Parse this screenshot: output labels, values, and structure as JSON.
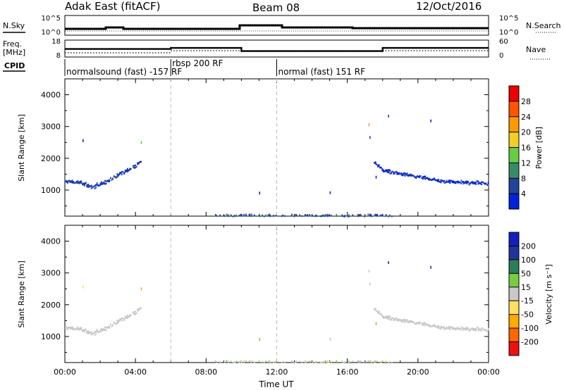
{
  "header": {
    "station": "Adak East (fitACF)",
    "beam": "Beam 08",
    "date": "12/Oct/2016"
  },
  "panels": {
    "nsky_label": "N.Sky",
    "nsearch_label": "N.Search",
    "freq_label": "Freq.",
    "freq_unit": "[MHz]",
    "nave_label": "Nave",
    "cpid_label": "CPID",
    "log_ticks_left": [
      "10^5",
      "10^0"
    ],
    "log_ticks_right": [
      "10^5",
      "10^0"
    ],
    "freq_ticks": [
      "18",
      "8"
    ],
    "nave_ticks": [
      "60",
      "0"
    ]
  },
  "cpid_segments": [
    {
      "label": "normalsound (fast) -157 RF",
      "start_hour": 0
    },
    {
      "label": "rbsp 200 RF",
      "start_hour": 6
    },
    {
      "label": "normal (fast) 151 RF",
      "start_hour": 12
    }
  ],
  "colors": {
    "power": [
      "#0022dd",
      "#224499",
      "#3a8a6a",
      "#66cc44",
      "#f0d020",
      "#ff9900",
      "#ff5500",
      "#ee0000"
    ],
    "velocity": [
      "#ee1111",
      "#ff6600",
      "#ffaa00",
      "#ffe060",
      "#c8c8c8",
      "#77cc44",
      "#2e7d5a",
      "#223399",
      "#1122bb"
    ]
  },
  "chart_data": [
    {
      "type": "line",
      "name": "frequency-nave",
      "x_unit": "hours UT",
      "frequency_steps": [
        {
          "x": [
            0,
            6
          ],
          "value": 12.7
        },
        {
          "x": [
            6,
            10
          ],
          "value": 13.5
        },
        {
          "x": [
            10,
            18
          ],
          "value": 11.0
        },
        {
          "x": [
            18,
            24
          ],
          "value": 13.5
        }
      ],
      "nave_steps": [
        {
          "x": [
            0,
            6
          ],
          "value": 10
        },
        {
          "x": [
            6,
            10
          ],
          "value": 20
        },
        {
          "x": [
            10,
            18
          ],
          "value": 20
        },
        {
          "x": [
            18,
            24
          ],
          "value": 20
        }
      ],
      "freq_ylim": [
        8,
        18
      ],
      "nave_ylim": [
        0,
        60
      ]
    },
    {
      "type": "scatter",
      "name": "power",
      "title": "",
      "xlabel": "",
      "ylabel": "Slant Range [km]",
      "xlim": [
        0,
        24
      ],
      "ylim": [
        180,
        4500
      ],
      "y_ticks": [
        "4000",
        "3000",
        "2000",
        "1000"
      ],
      "colorbar_label": "Power [dB]",
      "colorbar_ticks": [
        "28",
        "24",
        "20",
        "16",
        "12",
        "8",
        "4"
      ],
      "range_min": 3,
      "range_max": 30,
      "bands": [
        {
          "x": [
            0.0,
            0.5,
            1.0,
            1.5,
            2.0,
            2.5,
            3.0,
            3.5,
            4.0,
            4.3
          ],
          "y": [
            1290,
            1280,
            1230,
            1130,
            1200,
            1340,
            1500,
            1650,
            1810,
            1950
          ],
          "spread": 90,
          "density": 3,
          "v_mean": 7,
          "v_sd": 3
        },
        {
          "x": [
            17.5,
            18.0,
            18.5,
            19.0,
            19.5,
            20.0,
            20.5,
            21.0,
            21.5,
            22.0,
            22.5,
            23.0,
            23.5,
            24.0
          ],
          "y": [
            1900,
            1650,
            1580,
            1540,
            1500,
            1450,
            1400,
            1340,
            1290,
            1280,
            1270,
            1260,
            1250,
            1230
          ],
          "spread": 75,
          "density": 3,
          "v_mean": 6,
          "v_sd": 3
        }
      ],
      "scatter_noise": {
        "x": [
          8.5,
          18.5
        ],
        "y": [
          190,
          260
        ],
        "count": 120,
        "v_mean": 8,
        "v_sd": 4
      },
      "isolated_points": [
        {
          "x": 1.0,
          "y": 2600,
          "v": 5
        },
        {
          "x": 4.3,
          "y": 2540,
          "v": 16
        },
        {
          "x": 11.0,
          "y": 950,
          "v": 6
        },
        {
          "x": 15.0,
          "y": 960,
          "v": 6
        },
        {
          "x": 17.2,
          "y": 3100,
          "v": 20
        },
        {
          "x": 17.25,
          "y": 2700,
          "v": 8
        },
        {
          "x": 18.3,
          "y": 3370,
          "v": 8
        },
        {
          "x": 20.7,
          "y": 3220,
          "v": 5
        },
        {
          "x": 17.6,
          "y": 1450,
          "v": 6
        }
      ]
    },
    {
      "type": "scatter",
      "name": "velocity",
      "title": "",
      "xlabel": "Time UT",
      "ylabel": "Slant Range [km]",
      "xlim": [
        0,
        24
      ],
      "ylim": [
        180,
        4500
      ],
      "x_ticks": [
        "00:00",
        "04:00",
        "08:00",
        "12:00",
        "16:00",
        "20:00",
        "00:00"
      ],
      "y_ticks": [
        "4000",
        "3000",
        "2000",
        "1000"
      ],
      "colorbar_label": "Velocity [m s⁻¹]",
      "colorbar_ticks": [
        "200",
        "100",
        "50",
        "15",
        "-15",
        "-50",
        "-100",
        "-200"
      ],
      "range_min": -300,
      "range_max": 300,
      "bands": [
        {
          "x": [
            0.0,
            0.5,
            1.0,
            1.5,
            2.0,
            2.5,
            3.0,
            3.5,
            4.0,
            4.3
          ],
          "y": [
            1290,
            1280,
            1230,
            1130,
            1200,
            1340,
            1500,
            1650,
            1810,
            1950
          ],
          "spread": 90,
          "density": 3,
          "v_mean": 0,
          "v_sd": 12
        },
        {
          "x": [
            17.5,
            18.0,
            18.5,
            19.0,
            19.5,
            20.0,
            20.5,
            21.0,
            21.5,
            22.0,
            22.5,
            23.0,
            23.5,
            24.0
          ],
          "y": [
            1900,
            1650,
            1580,
            1540,
            1500,
            1450,
            1400,
            1340,
            1290,
            1280,
            1270,
            1260,
            1250,
            1230
          ],
          "spread": 75,
          "density": 3,
          "v_mean": 0,
          "v_sd": 10
        }
      ],
      "scatter_noise": {
        "x": [
          8.5,
          18.5
        ],
        "y": [
          190,
          260
        ],
        "count": 120,
        "v_mean": 0,
        "v_sd": 40
      },
      "isolated_points": [
        {
          "x": 1.0,
          "y": 2600,
          "v": -40
        },
        {
          "x": 4.3,
          "y": 2540,
          "v": -60
        },
        {
          "x": 11.0,
          "y": 950,
          "v": 30
        },
        {
          "x": 15.0,
          "y": 960,
          "v": 0
        },
        {
          "x": 17.2,
          "y": 3100,
          "v": 0
        },
        {
          "x": 17.25,
          "y": 2700,
          "v": 0
        },
        {
          "x": 18.3,
          "y": 3370,
          "v": 150
        },
        {
          "x": 20.7,
          "y": 3220,
          "v": 150
        },
        {
          "x": 17.6,
          "y": 1450,
          "v": 40
        }
      ]
    }
  ]
}
